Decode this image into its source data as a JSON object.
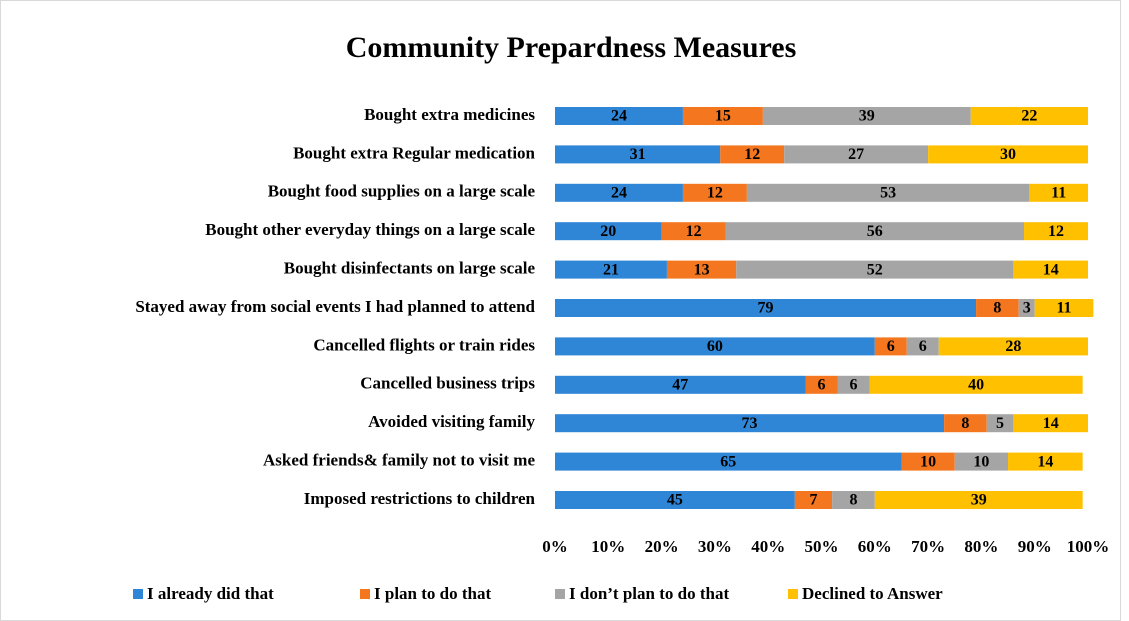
{
  "chart_data": {
    "type": "stacked_hbar",
    "title": "Community Prepardness Measures",
    "categories": [
      "Bought extra medicines",
      "Bought extra Regular medication",
      "Bought food supplies on a large scale",
      "Bought other everyday things on a large scale",
      "Bought disinfectants on large scale",
      "Stayed away from social events I had planned to attend",
      "Cancelled flights or train rides",
      "Cancelled business trips",
      "Avoided visiting family",
      "Asked friends& family not to visit me",
      "Imposed restrictions to children"
    ],
    "series": [
      {
        "name": "I already did that",
        "color": "#2f86d7",
        "values": [
          24,
          31,
          24,
          20,
          21,
          79,
          60,
          47,
          73,
          65,
          45
        ]
      },
      {
        "name": "I plan to do that",
        "color": "#f4771f",
        "values": [
          15,
          12,
          12,
          12,
          13,
          8,
          6,
          6,
          8,
          10,
          7
        ]
      },
      {
        "name": "I don’t plan to do that",
        "color": "#a5a5a5",
        "values": [
          39,
          27,
          53,
          56,
          52,
          3,
          6,
          6,
          5,
          10,
          8
        ]
      },
      {
        "name": "Declined to Answer",
        "color": "#ffc000",
        "values": [
          22,
          30,
          11,
          12,
          14,
          11,
          28,
          40,
          14,
          14,
          39
        ]
      }
    ],
    "xlim": [
      0,
      100
    ],
    "xticks": [
      {
        "value": 0,
        "label": "0%"
      },
      {
        "value": 10,
        "label": "10%"
      },
      {
        "value": 20,
        "label": "20%"
      },
      {
        "value": 30,
        "label": "30%"
      },
      {
        "value": 40,
        "label": "40%"
      },
      {
        "value": 50,
        "label": "50%"
      },
      {
        "value": 60,
        "label": "60%"
      },
      {
        "value": 70,
        "label": "70%"
      },
      {
        "value": 80,
        "label": "80%"
      },
      {
        "value": 90,
        "label": "90%"
      },
      {
        "value": 100,
        "label": "100%"
      }
    ],
    "legend": "bottom"
  }
}
